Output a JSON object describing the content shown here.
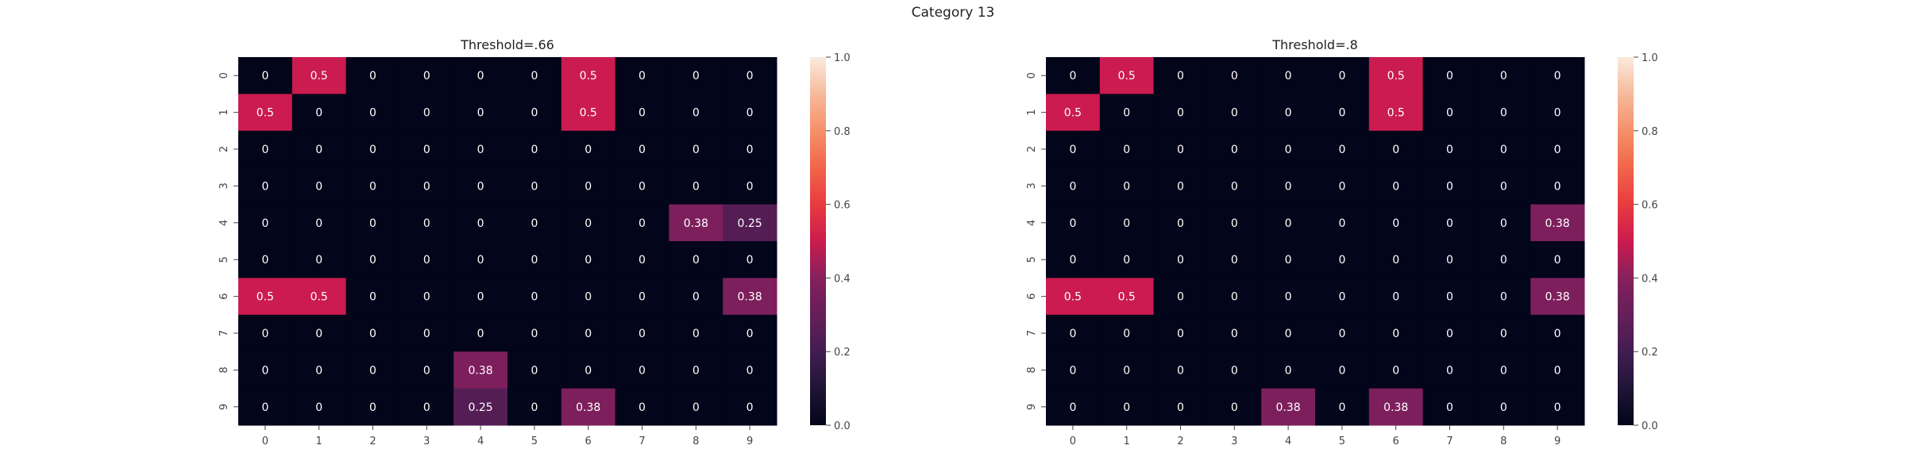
{
  "figure": {
    "title": "Category 13"
  },
  "chart_data": [
    {
      "type": "heatmap",
      "title": "Threshold=.66",
      "x_tick_labels": [
        "0",
        "1",
        "2",
        "3",
        "4",
        "5",
        "6",
        "7",
        "8",
        "9"
      ],
      "y_tick_labels": [
        "0",
        "1",
        "2",
        "3",
        "4",
        "5",
        "6",
        "7",
        "8",
        "9"
      ],
      "values": [
        [
          0,
          0.5,
          0,
          0,
          0,
          0,
          0.5,
          0,
          0,
          0
        ],
        [
          0.5,
          0,
          0,
          0,
          0,
          0,
          0.5,
          0,
          0,
          0
        ],
        [
          0,
          0,
          0,
          0,
          0,
          0,
          0,
          0,
          0,
          0
        ],
        [
          0,
          0,
          0,
          0,
          0,
          0,
          0,
          0,
          0,
          0
        ],
        [
          0,
          0,
          0,
          0,
          0,
          0,
          0,
          0,
          0.38,
          0.25
        ],
        [
          0,
          0,
          0,
          0,
          0,
          0,
          0,
          0,
          0,
          0
        ],
        [
          0.5,
          0.5,
          0,
          0,
          0,
          0,
          0,
          0,
          0,
          0.38
        ],
        [
          0,
          0,
          0,
          0,
          0,
          0,
          0,
          0,
          0,
          0
        ],
        [
          0,
          0,
          0,
          0,
          0.38,
          0,
          0,
          0,
          0,
          0
        ],
        [
          0,
          0,
          0,
          0,
          0.25,
          0,
          0.38,
          0,
          0,
          0
        ]
      ],
      "colorbar": {
        "range": [
          0.0,
          1.0
        ],
        "ticks": [
          "0.0",
          "0.2",
          "0.4",
          "0.6",
          "0.8",
          "1.0"
        ]
      },
      "colormap": "rocket"
    },
    {
      "type": "heatmap",
      "title": "Threshold=.8",
      "x_tick_labels": [
        "0",
        "1",
        "2",
        "3",
        "4",
        "5",
        "6",
        "7",
        "8",
        "9"
      ],
      "y_tick_labels": [
        "0",
        "1",
        "2",
        "3",
        "4",
        "5",
        "6",
        "7",
        "8",
        "9"
      ],
      "values": [
        [
          0,
          0.5,
          0,
          0,
          0,
          0,
          0.5,
          0,
          0,
          0
        ],
        [
          0.5,
          0,
          0,
          0,
          0,
          0,
          0.5,
          0,
          0,
          0
        ],
        [
          0,
          0,
          0,
          0,
          0,
          0,
          0,
          0,
          0,
          0
        ],
        [
          0,
          0,
          0,
          0,
          0,
          0,
          0,
          0,
          0,
          0
        ],
        [
          0,
          0,
          0,
          0,
          0,
          0,
          0,
          0,
          0,
          0.38
        ],
        [
          0,
          0,
          0,
          0,
          0,
          0,
          0,
          0,
          0,
          0
        ],
        [
          0.5,
          0.5,
          0,
          0,
          0,
          0,
          0,
          0,
          0,
          0.38
        ],
        [
          0,
          0,
          0,
          0,
          0,
          0,
          0,
          0,
          0,
          0
        ],
        [
          0,
          0,
          0,
          0,
          0,
          0,
          0,
          0,
          0,
          0
        ],
        [
          0,
          0,
          0,
          0,
          0.38,
          0,
          0.38,
          0,
          0,
          0
        ]
      ],
      "colorbar": {
        "range": [
          0.0,
          1.0
        ],
        "ticks": [
          "0.0",
          "0.2",
          "0.4",
          "0.6",
          "0.8",
          "1.0"
        ]
      },
      "colormap": "rocket"
    }
  ]
}
